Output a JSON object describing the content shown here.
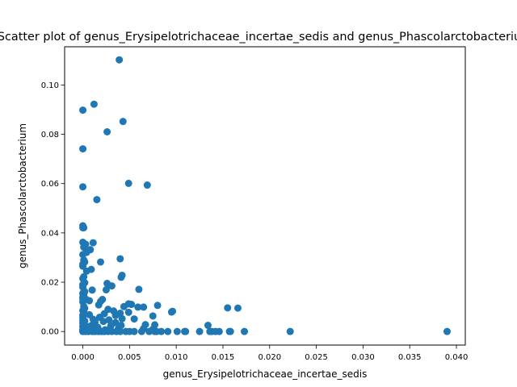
{
  "chart_data": {
    "type": "scatter",
    "title": "Scatter plot of genus_Erysipelotrichaceae_incertae_sedis and genus_Phascolarctobacterium",
    "xlabel": "genus_Erysipelotrichaceae_incertae_sedis",
    "ylabel": "genus_Phascolarctobacterium",
    "xlim": [
      -0.00195,
      0.04095
    ],
    "ylim": [
      -0.0055,
      0.1155
    ],
    "xticks": [
      0.0,
      0.005,
      0.01,
      0.015,
      0.02,
      0.025,
      0.03,
      0.035,
      0.04
    ],
    "xtick_labels": [
      "0.000",
      "0.005",
      "0.010",
      "0.015",
      "0.020",
      "0.025",
      "0.030",
      "0.035",
      "0.040"
    ],
    "yticks": [
      0.0,
      0.02,
      0.04,
      0.06,
      0.08,
      0.1
    ],
    "ytick_labels": [
      "0.00",
      "0.02",
      "0.04",
      "0.06",
      "0.08",
      "0.10"
    ],
    "grid": false,
    "marker_color": "#1f77b4",
    "points": [
      [
        0.0039,
        0.1102
      ],
      [
        0.0,
        0.0898
      ],
      [
        0.0012,
        0.0922
      ],
      [
        0.0043,
        0.0852
      ],
      [
        0.0026,
        0.081
      ],
      [
        0.0,
        0.0741
      ],
      [
        0.0049,
        0.0601
      ],
      [
        0.0069,
        0.0594
      ],
      [
        0.0,
        0.0587
      ],
      [
        0.0015,
        0.0535
      ],
      [
        0.0,
        0.0429
      ],
      [
        0.0,
        0.0421
      ],
      [
        0.0001,
        0.0421
      ],
      [
        0.0,
        0.0362
      ],
      [
        0.0011,
        0.036
      ],
      [
        0.0003,
        0.0354
      ],
      [
        0.0001,
        0.0342
      ],
      [
        0.0008,
        0.0332
      ],
      [
        0.0004,
        0.0321
      ],
      [
        0.0,
        0.0312
      ],
      [
        0.004,
        0.0295
      ],
      [
        0.0001,
        0.029
      ],
      [
        0.0002,
        0.0282
      ],
      [
        0.0019,
        0.0282
      ],
      [
        0.0,
        0.0273
      ],
      [
        0.0,
        0.0265
      ],
      [
        0.0009,
        0.0252
      ],
      [
        0.0004,
        0.0245
      ],
      [
        0.0042,
        0.0228
      ],
      [
        0.0041,
        0.022
      ],
      [
        0.0001,
        0.0222
      ],
      [
        0.0,
        0.0215
      ],
      [
        0.0002,
        0.0198
      ],
      [
        0.0026,
        0.0195
      ],
      [
        0.0031,
        0.0185
      ],
      [
        0.0,
        0.019
      ],
      [
        0.0,
        0.018
      ],
      [
        0.006,
        0.0171
      ],
      [
        0.0025,
        0.0169
      ],
      [
        0.001,
        0.0168
      ],
      [
        0.0002,
        0.0162
      ],
      [
        0.0,
        0.0155
      ],
      [
        0.0001,
        0.015
      ],
      [
        0.0,
        0.014
      ],
      [
        0.0,
        0.0133
      ],
      [
        0.0003,
        0.0132
      ],
      [
        0.0021,
        0.013
      ],
      [
        0.0019,
        0.0122
      ],
      [
        0.0007,
        0.0125
      ],
      [
        0.0,
        0.012
      ],
      [
        0.0049,
        0.0112
      ],
      [
        0.0052,
        0.011
      ],
      [
        0.0017,
        0.0108
      ],
      [
        0.008,
        0.0106
      ],
      [
        0.0044,
        0.0101
      ],
      [
        0.0059,
        0.0099
      ],
      [
        0.0065,
        0.0099
      ],
      [
        0.0155,
        0.0096
      ],
      [
        0.0166,
        0.0095
      ],
      [
        0.0001,
        0.0102
      ],
      [
        0.0002,
        0.0094
      ],
      [
        0.0027,
        0.009
      ],
      [
        0.0033,
        0.0083
      ],
      [
        0.0096,
        0.0082
      ],
      [
        0.0095,
        0.0079
      ],
      [
        0.0,
        0.0085
      ],
      [
        0.0001,
        0.008
      ],
      [
        0.0049,
        0.0078
      ],
      [
        0.004,
        0.0074
      ],
      [
        0.0023,
        0.0072
      ],
      [
        0.0007,
        0.0068
      ],
      [
        0.0,
        0.0066
      ],
      [
        0.0035,
        0.0065
      ],
      [
        0.0075,
        0.0063
      ],
      [
        0.0018,
        0.0058
      ],
      [
        0.0,
        0.0056
      ],
      [
        0.0042,
        0.0052
      ],
      [
        0.0055,
        0.0051
      ],
      [
        0.0011,
        0.005
      ],
      [
        0.0028,
        0.0047
      ],
      [
        0.0,
        0.0045
      ],
      [
        0.0002,
        0.0042
      ],
      [
        0.0022,
        0.0041
      ],
      [
        0.0013,
        0.0038
      ],
      [
        0.0035,
        0.0036
      ],
      [
        0.0,
        0.0034
      ],
      [
        0.0001,
        0.0031
      ],
      [
        0.0067,
        0.0028
      ],
      [
        0.0077,
        0.0027
      ],
      [
        0.0041,
        0.0025
      ],
      [
        0.0134,
        0.0025
      ],
      [
        0.0009,
        0.0024
      ],
      [
        0.003,
        0.0023
      ],
      [
        0.0,
        0.0021
      ],
      [
        0.0006,
        0.0019
      ],
      [
        0.0016,
        0.0017
      ],
      [
        0.0002,
        0.0015
      ],
      [
        0.0065,
        0.0012
      ],
      [
        0.0038,
        0.0011
      ],
      [
        0.0075,
        0.0009
      ],
      [
        0.0,
        0.0008
      ],
      [
        0.0024,
        0.0007
      ],
      [
        0.0012,
        0.0006
      ],
      [
        0.0001,
        0.0005
      ],
      [
        0.0004,
        0.0004
      ],
      [
        0.0029,
        0.0003
      ],
      [
        0.0,
        0.0002
      ],
      [
        0.0008,
        0.0002
      ],
      [
        0.0015,
        0.0001
      ],
      [
        0.0,
        0.0
      ],
      [
        0.0003,
        0.0
      ],
      [
        0.0006,
        0.0
      ],
      [
        0.001,
        0.0
      ],
      [
        0.0013,
        0.0
      ],
      [
        0.0017,
        0.0
      ],
      [
        0.002,
        0.0
      ],
      [
        0.0023,
        0.0
      ],
      [
        0.0027,
        0.0
      ],
      [
        0.0031,
        0.0
      ],
      [
        0.0036,
        0.0
      ],
      [
        0.004,
        0.0
      ],
      [
        0.0046,
        0.0
      ],
      [
        0.005,
        0.0
      ],
      [
        0.0055,
        0.0
      ],
      [
        0.0063,
        0.0
      ],
      [
        0.0071,
        0.0
      ],
      [
        0.0077,
        0.0
      ],
      [
        0.0079,
        0.0
      ],
      [
        0.0084,
        0.0
      ],
      [
        0.0091,
        0.0
      ],
      [
        0.0101,
        0.0
      ],
      [
        0.0109,
        0.0
      ],
      [
        0.011,
        0.0
      ],
      [
        0.0125,
        0.0
      ],
      [
        0.0136,
        0.0
      ],
      [
        0.0138,
        0.0
      ],
      [
        0.0142,
        0.0
      ],
      [
        0.0146,
        0.0
      ],
      [
        0.0157,
        0.0
      ],
      [
        0.0158,
        0.0
      ],
      [
        0.0173,
        0.0
      ],
      [
        0.0222,
        0.0
      ],
      [
        0.039,
        0.0
      ]
    ]
  }
}
